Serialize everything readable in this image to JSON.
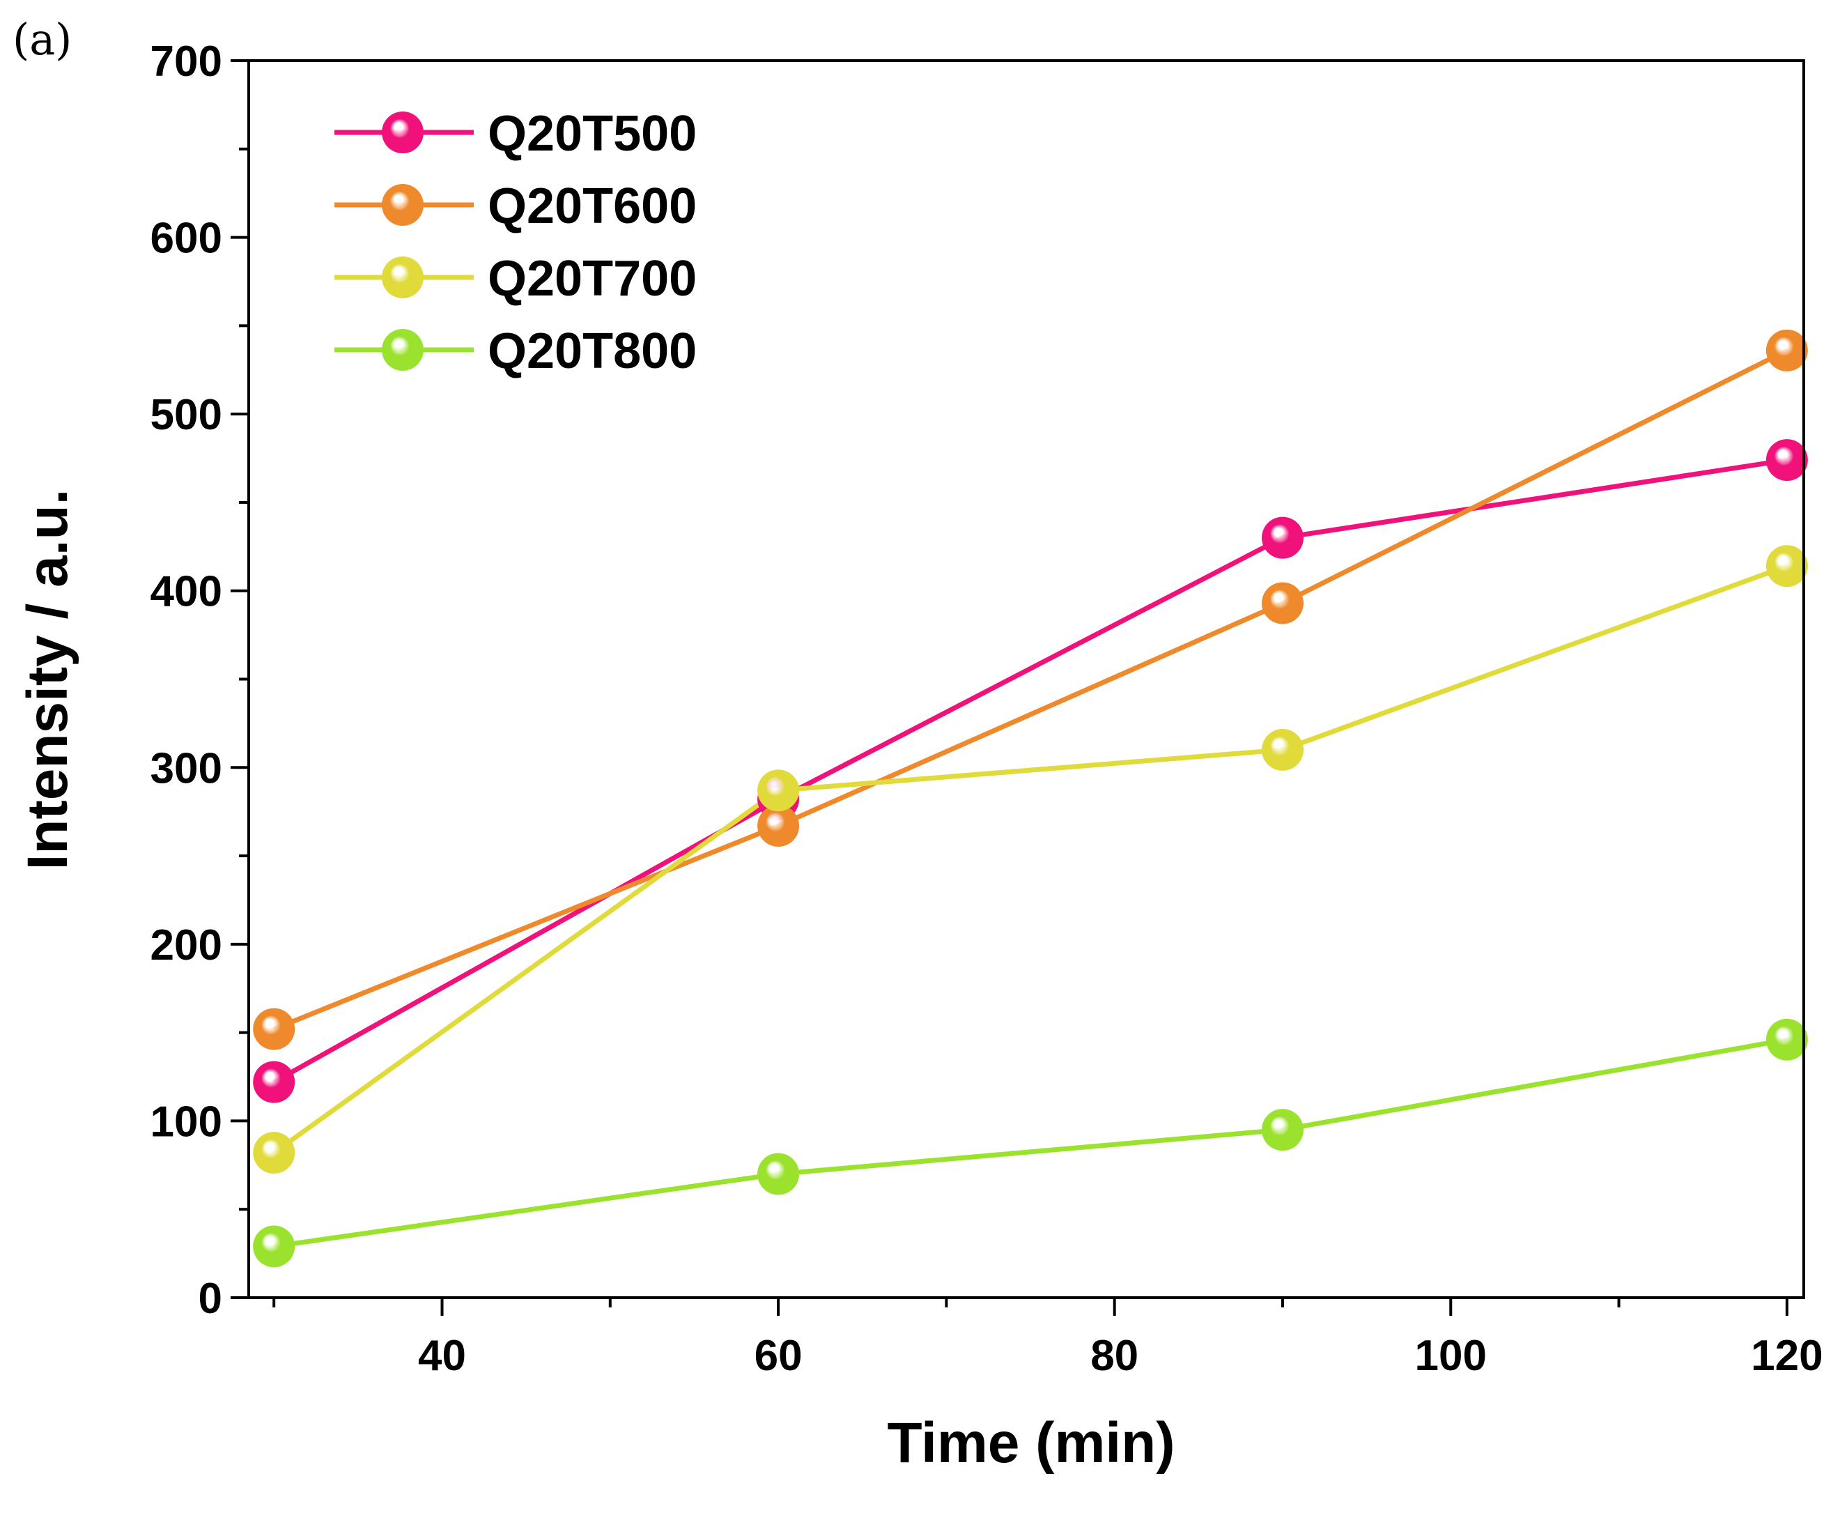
{
  "panel_label": "(a)",
  "chart_data": {
    "type": "line",
    "title": "",
    "xlabel": "Time (min)",
    "ylabel": "Intensity / a.u.",
    "xlim": [
      28.5,
      121
    ],
    "ylim": [
      0,
      700
    ],
    "xticks": [
      40,
      60,
      80,
      100,
      120
    ],
    "xtick_labels": [
      "40",
      "60",
      "80",
      "100",
      "120"
    ],
    "xminor": [
      30,
      50,
      70,
      90,
      110
    ],
    "yticks": [
      0,
      100,
      200,
      300,
      400,
      500,
      600,
      700
    ],
    "ytick_labels": [
      "0",
      "100",
      "200",
      "300",
      "400",
      "500",
      "600",
      "700"
    ],
    "yminor": [
      50,
      150,
      250,
      350,
      450,
      550,
      650
    ],
    "legend_position": "top-left",
    "x": [
      30,
      60,
      90,
      120
    ],
    "series": [
      {
        "name": "Q20T500",
        "color": "#f0117a",
        "values": [
          122,
          282,
          430,
          474
        ]
      },
      {
        "name": "Q20T600",
        "color": "#ef8a2c",
        "values": [
          152,
          267,
          393,
          536
        ]
      },
      {
        "name": "Q20T700",
        "color": "#e0da3a",
        "values": [
          82,
          287,
          310,
          414
        ]
      },
      {
        "name": "Q20T800",
        "color": "#9be22e",
        "values": [
          29,
          70,
          95,
          146
        ]
      }
    ]
  }
}
